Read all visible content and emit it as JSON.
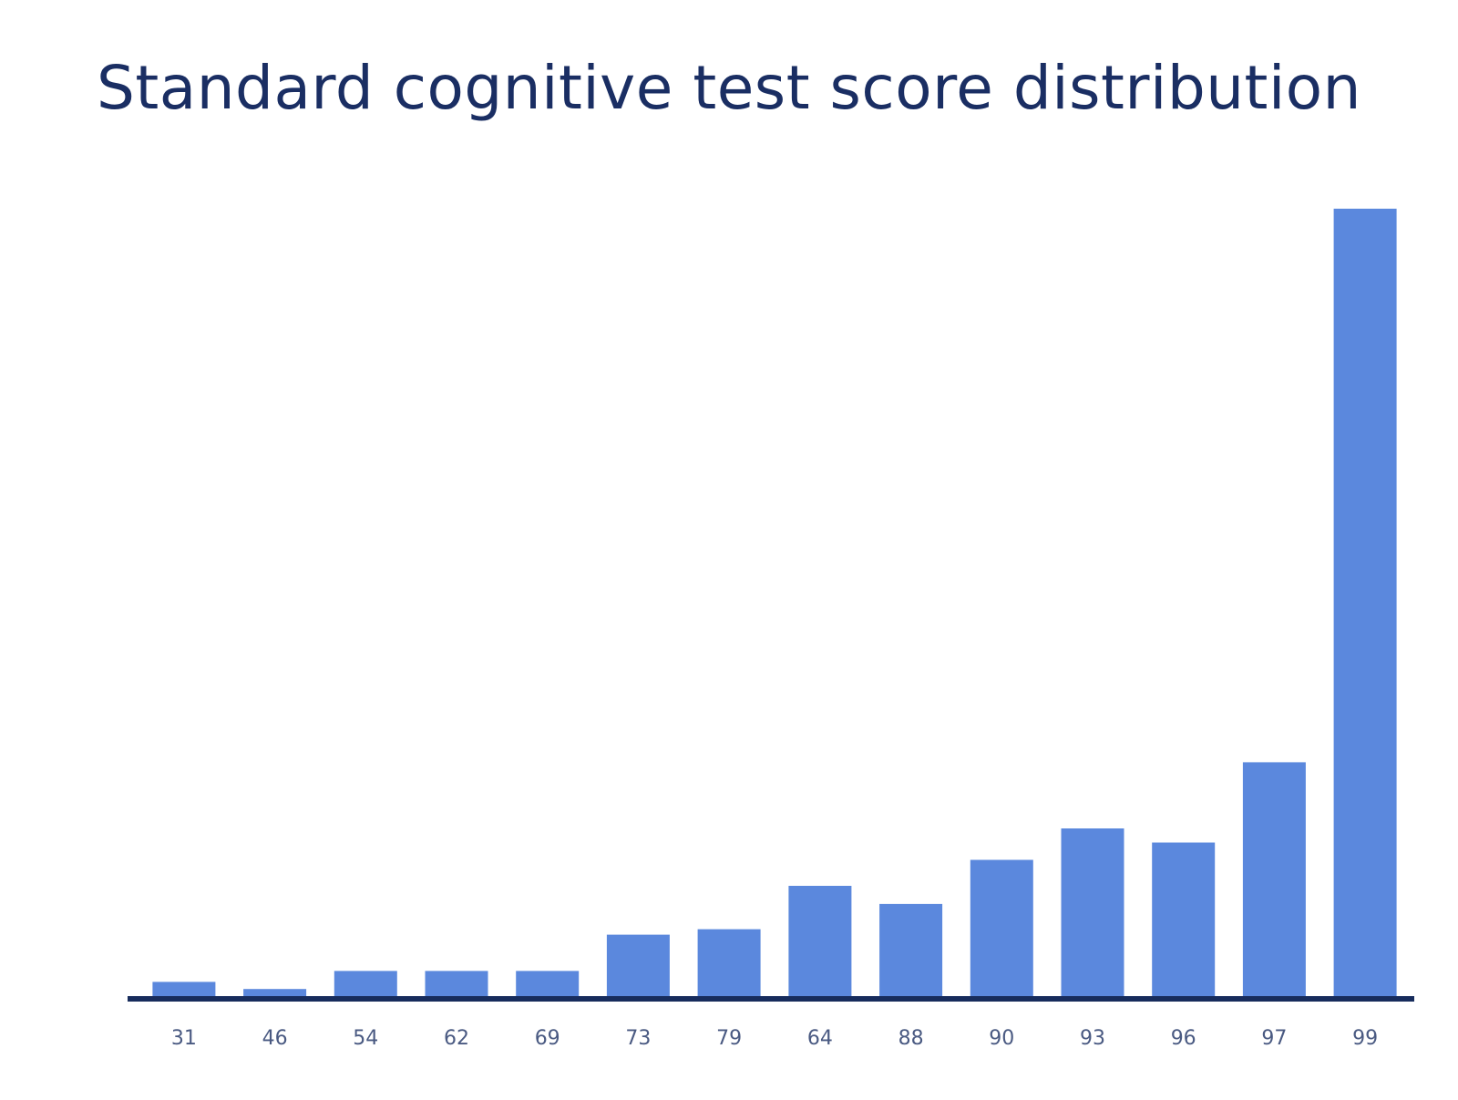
{
  "chart_data": {
    "type": "bar",
    "title": "Standard cognitive test score distribution",
    "xlabel": "",
    "ylabel": "",
    "categories": [
      "31",
      "46",
      "54",
      "62",
      "69",
      "73",
      "79",
      "64",
      "88",
      "90",
      "93",
      "96",
      "97",
      "99"
    ],
    "values": [
      1.8,
      0.9,
      3.2,
      3.2,
      3.2,
      7.8,
      8.5,
      14.0,
      11.7,
      17.3,
      21.3,
      19.5,
      29.7,
      100
    ],
    "ylim": [
      0,
      100
    ],
    "grid": false,
    "legend": "none",
    "colors": {
      "bar": "#5b88dd",
      "axis": "#172c5c",
      "title": "#1a2e63",
      "tick": "#4a5a82"
    }
  }
}
